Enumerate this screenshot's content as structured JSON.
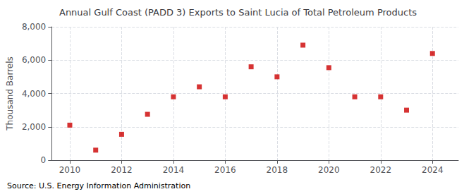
{
  "chart_data": {
    "type": "scatter",
    "title": "Annual Gulf Coast (PADD 3) Exports to Saint Lucia of Total Petroleum Products",
    "ylabel": "Thousand Barrels",
    "source": "Source: U.S. Energy Information Administration",
    "x": [
      2010,
      2011,
      2012,
      2013,
      2014,
      2015,
      2016,
      2017,
      2018,
      2019,
      2020,
      2021,
      2022,
      2023,
      2024
    ],
    "values": [
      2100,
      600,
      1550,
      2750,
      3800,
      4400,
      3800,
      5600,
      5000,
      6900,
      5550,
      3800,
      3800,
      3000,
      6400
    ],
    "color": "#cc0000",
    "marker": "square",
    "xlim": [
      2009.3,
      2025.0
    ],
    "xticks": [
      2010,
      2012,
      2014,
      2016,
      2018,
      2020,
      2022,
      2024
    ],
    "ylim": [
      0,
      8000
    ],
    "yticks": [
      0,
      {
        "value": 2000,
        "label": "2,000"
      },
      {
        "value": 4000,
        "label": "4,000"
      },
      {
        "value": 6000,
        "label": "6,000"
      },
      {
        "value": 8000,
        "label": "8,000"
      }
    ],
    "grid": true
  }
}
